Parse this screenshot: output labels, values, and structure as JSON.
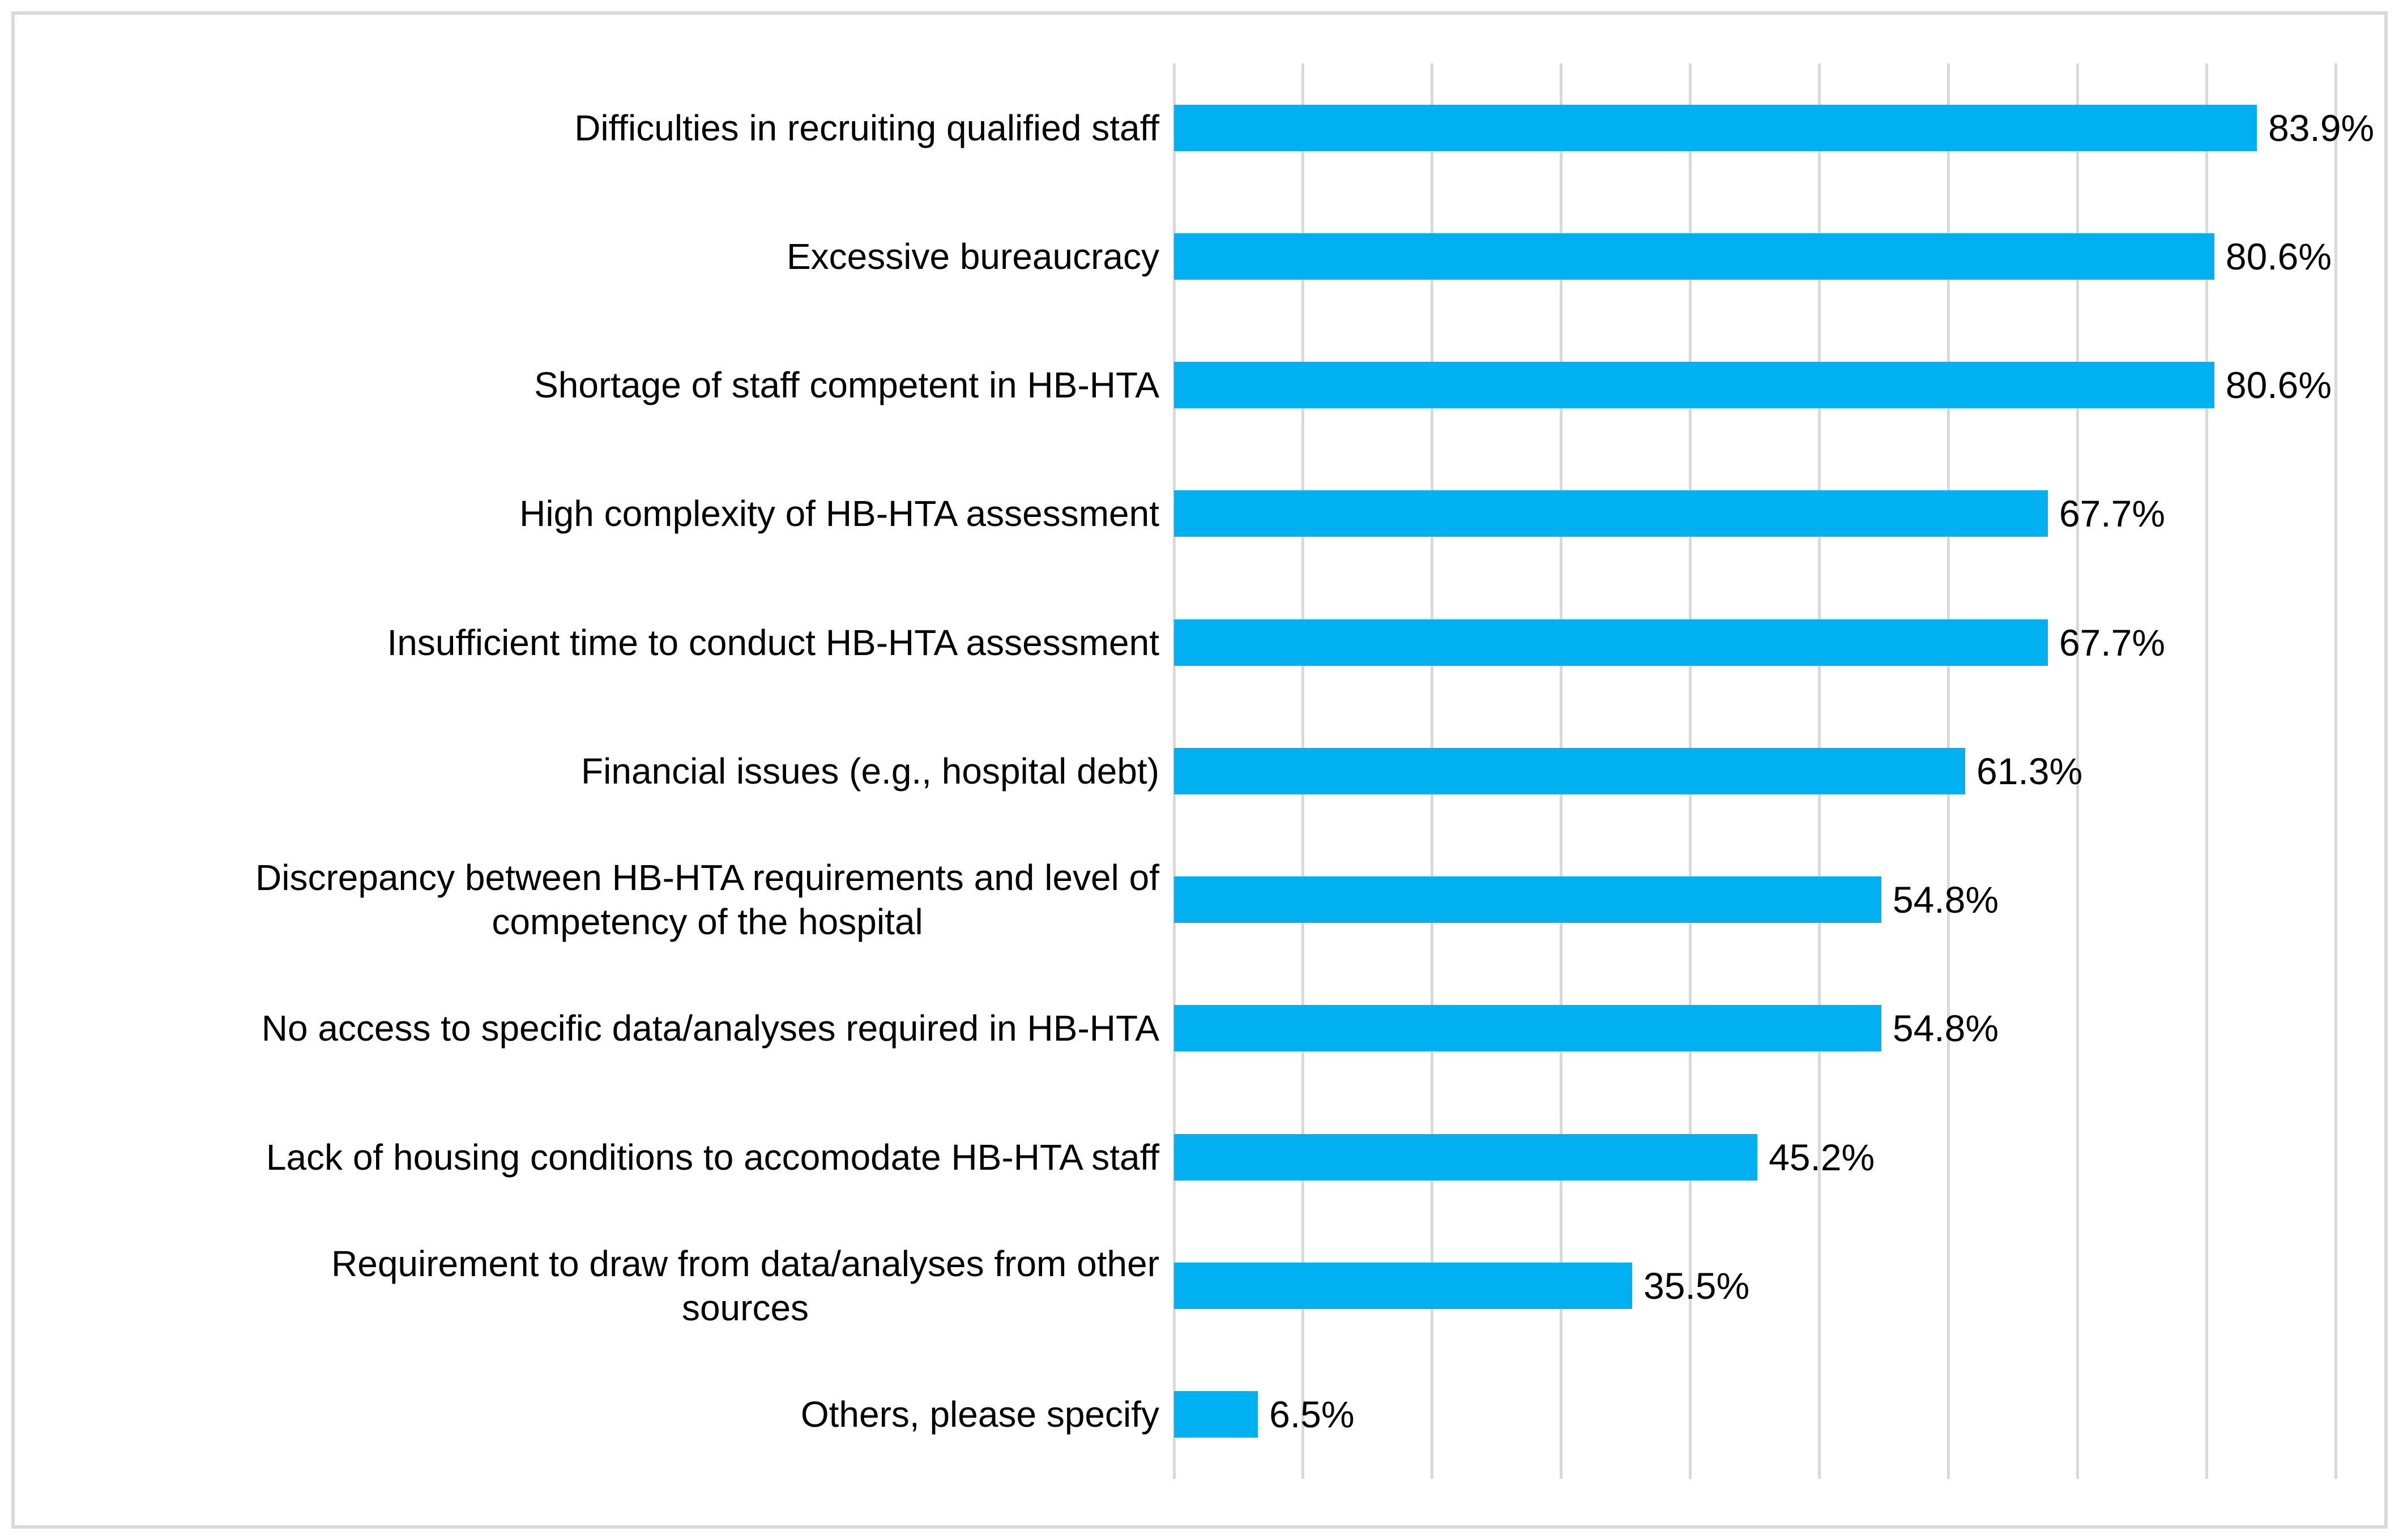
{
  "chart_data": {
    "type": "bar",
    "orientation": "horizontal",
    "title": "",
    "categories": [
      "Difficulties in recruiting qualified staff",
      "Excessive bureaucracy",
      "Shortage of staff competent in HB-HTA",
      "High complexity of HB-HTA assessment",
      "Insufficient time to conduct HB-HTA assessment",
      "Financial issues (e.g., hospital debt)",
      "Discrepancy between HB-HTA requirements and level of\ncompetency of the hospital",
      "No access to specific data/analyses required in HB-HTA",
      "Lack of housing conditions to accomodate HB-HTA staff",
      "Requirement to draw from data/analyses from other\nsources",
      "Others, please specify"
    ],
    "values": [
      83.9,
      80.6,
      80.6,
      67.7,
      67.7,
      61.3,
      54.8,
      54.8,
      45.2,
      35.5,
      6.5
    ],
    "value_labels": [
      "83.9%",
      "80.6%",
      "80.6%",
      "67.7%",
      "67.7%",
      "61.3%",
      "54.8%",
      "54.8%",
      "45.2%",
      "35.5%",
      "6.5%"
    ],
    "xlabel": "",
    "ylabel": "",
    "xlim": [
      0,
      90
    ],
    "gridline_step": 10,
    "grid": "vertical-only",
    "legend": "none",
    "axis_tick_labels_visible": false
  },
  "style": {
    "bar_color": "#00B0F0",
    "gridline_color": "#D9D9D9",
    "frame_border_color": "#D9D9D9",
    "text_color": "#000000",
    "background_color": "#FFFFFF"
  }
}
